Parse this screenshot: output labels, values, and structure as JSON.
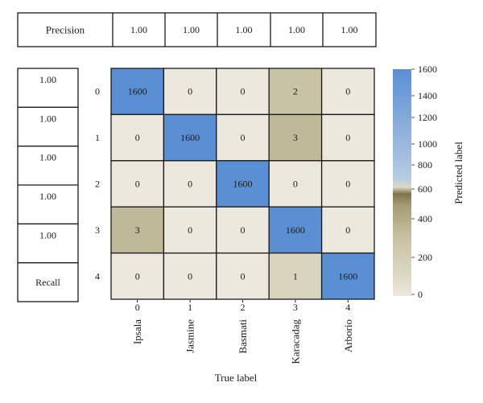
{
  "precision_table": {
    "label": "Precision",
    "values": [
      "1.00",
      "1.00",
      "1.00",
      "1.00",
      "1.00"
    ]
  },
  "recall_table": {
    "values": [
      "1.00",
      "1.00",
      "1.00",
      "1.00",
      "1.00"
    ],
    "label": "Recall"
  },
  "chart_data": {
    "type": "heatmap",
    "row_labels": [
      "0",
      "1",
      "2",
      "3",
      "4"
    ],
    "col_index_labels": [
      "0",
      "1",
      "2",
      "3",
      "4"
    ],
    "col_class_labels": [
      "Ipsala",
      "Jasmine",
      "Basmati",
      "Karacadag",
      "Arborio"
    ],
    "matrix": [
      [
        1600,
        0,
        0,
        2,
        0
      ],
      [
        0,
        1600,
        0,
        3,
        0
      ],
      [
        0,
        0,
        1600,
        0,
        0
      ],
      [
        3,
        0,
        0,
        1600,
        0
      ],
      [
        0,
        0,
        0,
        1,
        1600
      ]
    ],
    "xlabel": "True label",
    "ylabel": "Predicted label",
    "colorbar": {
      "ticks": [
        0,
        200,
        400,
        600,
        800,
        1000,
        1200,
        1400,
        1600
      ],
      "range": [
        0,
        1600
      ],
      "colors": {
        "zero": "#ece8dd",
        "low": "#d9d4be",
        "mid": "#c9c3a6",
        "olive": "#807349",
        "light_blue": "#b7cbe3",
        "blue": "#5b8fd3"
      }
    }
  }
}
